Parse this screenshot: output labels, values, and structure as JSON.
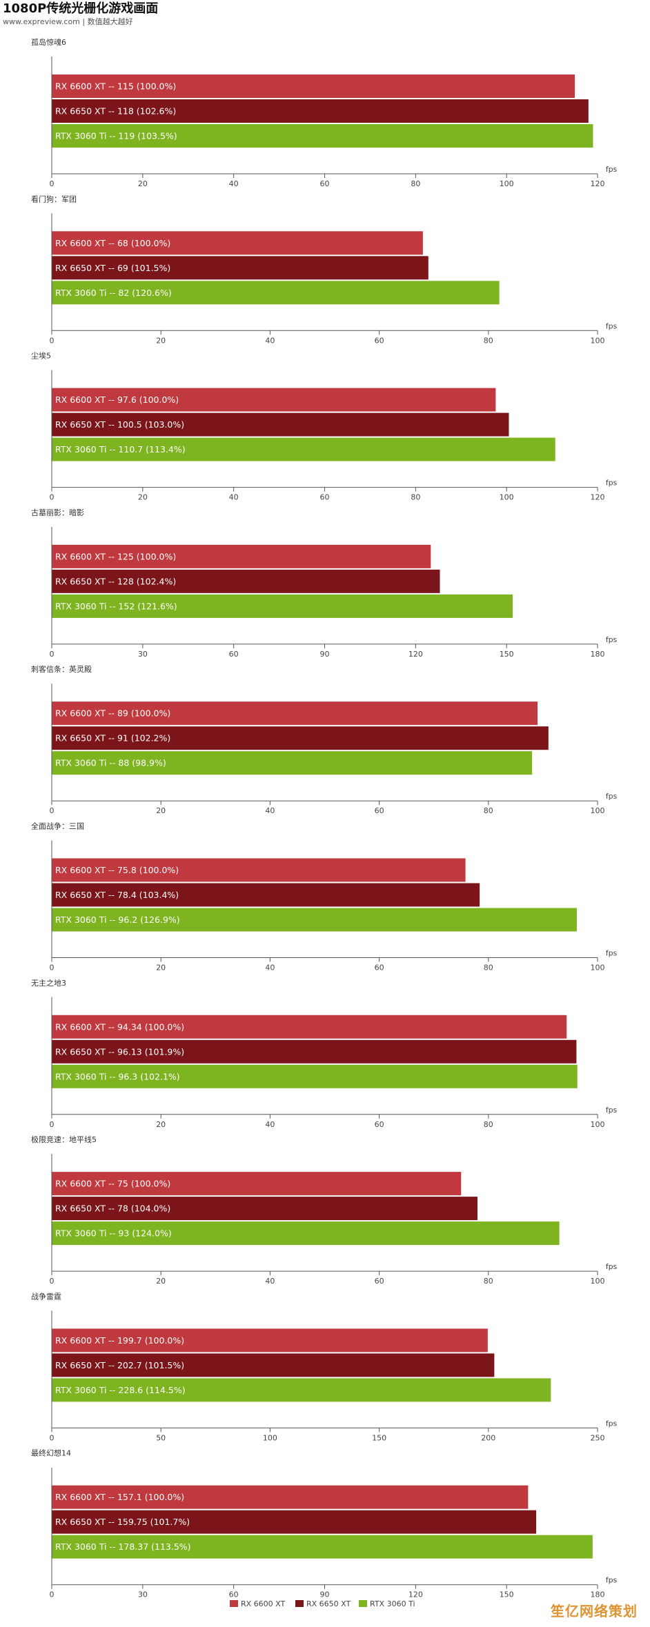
{
  "header": {
    "title": "1080P传统光栅化游戏画面",
    "subtitle": "www.expreview.com | 数值越大越好"
  },
  "watermark": "笙亿网络策划",
  "colors": {
    "rx6600xt": "#c0393f",
    "rx6650xt": "#7b1519",
    "rtx3060ti": "#7db41f"
  },
  "legend": [
    "RX 6600 XT",
    "RX 6650 XT",
    "RTX 3060 Ti"
  ],
  "axis_unit": "fps",
  "chart_data": [
    {
      "type": "bar",
      "orientation": "horizontal",
      "title": "孤岛惊魂6",
      "xlim": [
        0,
        120
      ],
      "ticks": [
        0,
        20,
        40,
        60,
        80,
        100,
        120
      ],
      "xlabel": "fps",
      "series": [
        {
          "name": "RX 6600 XT",
          "value": 115,
          "label": "RX 6600 XT  --  115 (100.0%)"
        },
        {
          "name": "RX 6650 XT",
          "value": 118,
          "label": "RX 6650 XT  --  118 (102.6%)"
        },
        {
          "name": "RTX 3060 Ti",
          "value": 119,
          "label": "RTX 3060 Ti  --  119 (103.5%)"
        }
      ]
    },
    {
      "type": "bar",
      "orientation": "horizontal",
      "title": "看门狗：军团",
      "xlim": [
        0,
        100
      ],
      "ticks": [
        0,
        20,
        40,
        60,
        80,
        100
      ],
      "xlabel": "fps",
      "series": [
        {
          "name": "RX 6600 XT",
          "value": 68,
          "label": "RX 6600 XT  --  68 (100.0%)"
        },
        {
          "name": "RX 6650 XT",
          "value": 69,
          "label": "RX 6650 XT  --  69 (101.5%)"
        },
        {
          "name": "RTX 3060 Ti",
          "value": 82,
          "label": "RTX 3060 Ti  --  82 (120.6%)"
        }
      ]
    },
    {
      "type": "bar",
      "orientation": "horizontal",
      "title": "尘埃5",
      "xlim": [
        0,
        120
      ],
      "ticks": [
        0,
        20,
        40,
        60,
        80,
        100,
        120
      ],
      "xlabel": "fps",
      "series": [
        {
          "name": "RX 6600 XT",
          "value": 97.6,
          "label": "RX 6600 XT  --  97.6 (100.0%)"
        },
        {
          "name": "RX 6650 XT",
          "value": 100.5,
          "label": "RX 6650 XT  --  100.5 (103.0%)"
        },
        {
          "name": "RTX 3060 Ti",
          "value": 110.7,
          "label": "RTX 3060 Ti  --  110.7 (113.4%)"
        }
      ]
    },
    {
      "type": "bar",
      "orientation": "horizontal",
      "title": "古墓丽影：暗影",
      "xlim": [
        0,
        180
      ],
      "ticks": [
        0,
        30,
        60,
        90,
        120,
        150,
        180
      ],
      "xlabel": "fps",
      "series": [
        {
          "name": "RX 6600 XT",
          "value": 125,
          "label": "RX 6600 XT  --  125 (100.0%)"
        },
        {
          "name": "RX 6650 XT",
          "value": 128,
          "label": "RX 6650 XT  --  128 (102.4%)"
        },
        {
          "name": "RTX 3060 Ti",
          "value": 152,
          "label": "RTX 3060 Ti  --  152 (121.6%)"
        }
      ]
    },
    {
      "type": "bar",
      "orientation": "horizontal",
      "title": "刺客信条：英灵殿",
      "xlim": [
        0,
        100
      ],
      "ticks": [
        0,
        20,
        40,
        60,
        80,
        100
      ],
      "xlabel": "fps",
      "series": [
        {
          "name": "RX 6600 XT",
          "value": 89,
          "label": "RX 6600 XT  --  89 (100.0%)"
        },
        {
          "name": "RX 6650 XT",
          "value": 91,
          "label": "RX 6650 XT  --  91 (102.2%)"
        },
        {
          "name": "RTX 3060 Ti",
          "value": 88,
          "label": "RTX 3060 Ti  --  88 (98.9%)"
        }
      ]
    },
    {
      "type": "bar",
      "orientation": "horizontal",
      "title": "全面战争：三国",
      "xlim": [
        0,
        100
      ],
      "ticks": [
        0,
        20,
        40,
        60,
        80,
        100
      ],
      "xlabel": "fps",
      "series": [
        {
          "name": "RX 6600 XT",
          "value": 75.8,
          "label": "RX 6600 XT  --  75.8 (100.0%)"
        },
        {
          "name": "RX 6650 XT",
          "value": 78.4,
          "label": "RX 6650 XT  --  78.4 (103.4%)"
        },
        {
          "name": "RTX 3060 Ti",
          "value": 96.2,
          "label": "RTX 3060 Ti  --  96.2 (126.9%)"
        }
      ]
    },
    {
      "type": "bar",
      "orientation": "horizontal",
      "title": "无主之地3",
      "xlim": [
        0,
        100
      ],
      "ticks": [
        0,
        20,
        40,
        60,
        80,
        100
      ],
      "xlabel": "fps",
      "series": [
        {
          "name": "RX 6600 XT",
          "value": 94.34,
          "label": "RX 6600 XT  --  94.34 (100.0%)"
        },
        {
          "name": "RX 6650 XT",
          "value": 96.13,
          "label": "RX 6650 XT  --  96.13 (101.9%)"
        },
        {
          "name": "RTX 3060 Ti",
          "value": 96.3,
          "label": "RTX 3060 Ti  --  96.3 (102.1%)"
        }
      ]
    },
    {
      "type": "bar",
      "orientation": "horizontal",
      "title": "极限竞速：地平线5",
      "xlim": [
        0,
        100
      ],
      "ticks": [
        0,
        20,
        40,
        60,
        80,
        100
      ],
      "xlabel": "fps",
      "series": [
        {
          "name": "RX 6600 XT",
          "value": 75,
          "label": "RX 6600 XT  --  75 (100.0%)"
        },
        {
          "name": "RX 6650 XT",
          "value": 78,
          "label": "RX 6650 XT  --  78 (104.0%)"
        },
        {
          "name": "RTX 3060 Ti",
          "value": 93,
          "label": "RTX 3060 Ti  --  93 (124.0%)"
        }
      ]
    },
    {
      "type": "bar",
      "orientation": "horizontal",
      "title": "战争雷霆",
      "xlim": [
        0,
        250
      ],
      "ticks": [
        0,
        50,
        100,
        150,
        200,
        250
      ],
      "xlabel": "fps",
      "series": [
        {
          "name": "RX 6600 XT",
          "value": 199.7,
          "label": "RX 6600 XT  --  199.7 (100.0%)"
        },
        {
          "name": "RX 6650 XT",
          "value": 202.7,
          "label": "RX 6650 XT  --  202.7 (101.5%)"
        },
        {
          "name": "RTX 3060 Ti",
          "value": 228.6,
          "label": "RTX 3060 Ti  --  228.6 (114.5%)"
        }
      ]
    },
    {
      "type": "bar",
      "orientation": "horizontal",
      "title": "最终幻想14",
      "xlim": [
        0,
        180
      ],
      "ticks": [
        0,
        30,
        60,
        90,
        120,
        150,
        180
      ],
      "xlabel": "fps",
      "series": [
        {
          "name": "RX 6600 XT",
          "value": 157.1,
          "label": "RX 6600 XT  --  157.1 (100.0%)"
        },
        {
          "name": "RX 6650 XT",
          "value": 159.75,
          "label": "RX 6650 XT  --  159.75 (101.7%)"
        },
        {
          "name": "RTX 3060 Ti",
          "value": 178.37,
          "label": "RTX 3060 Ti  --  178.37 (113.5%)"
        }
      ]
    }
  ]
}
